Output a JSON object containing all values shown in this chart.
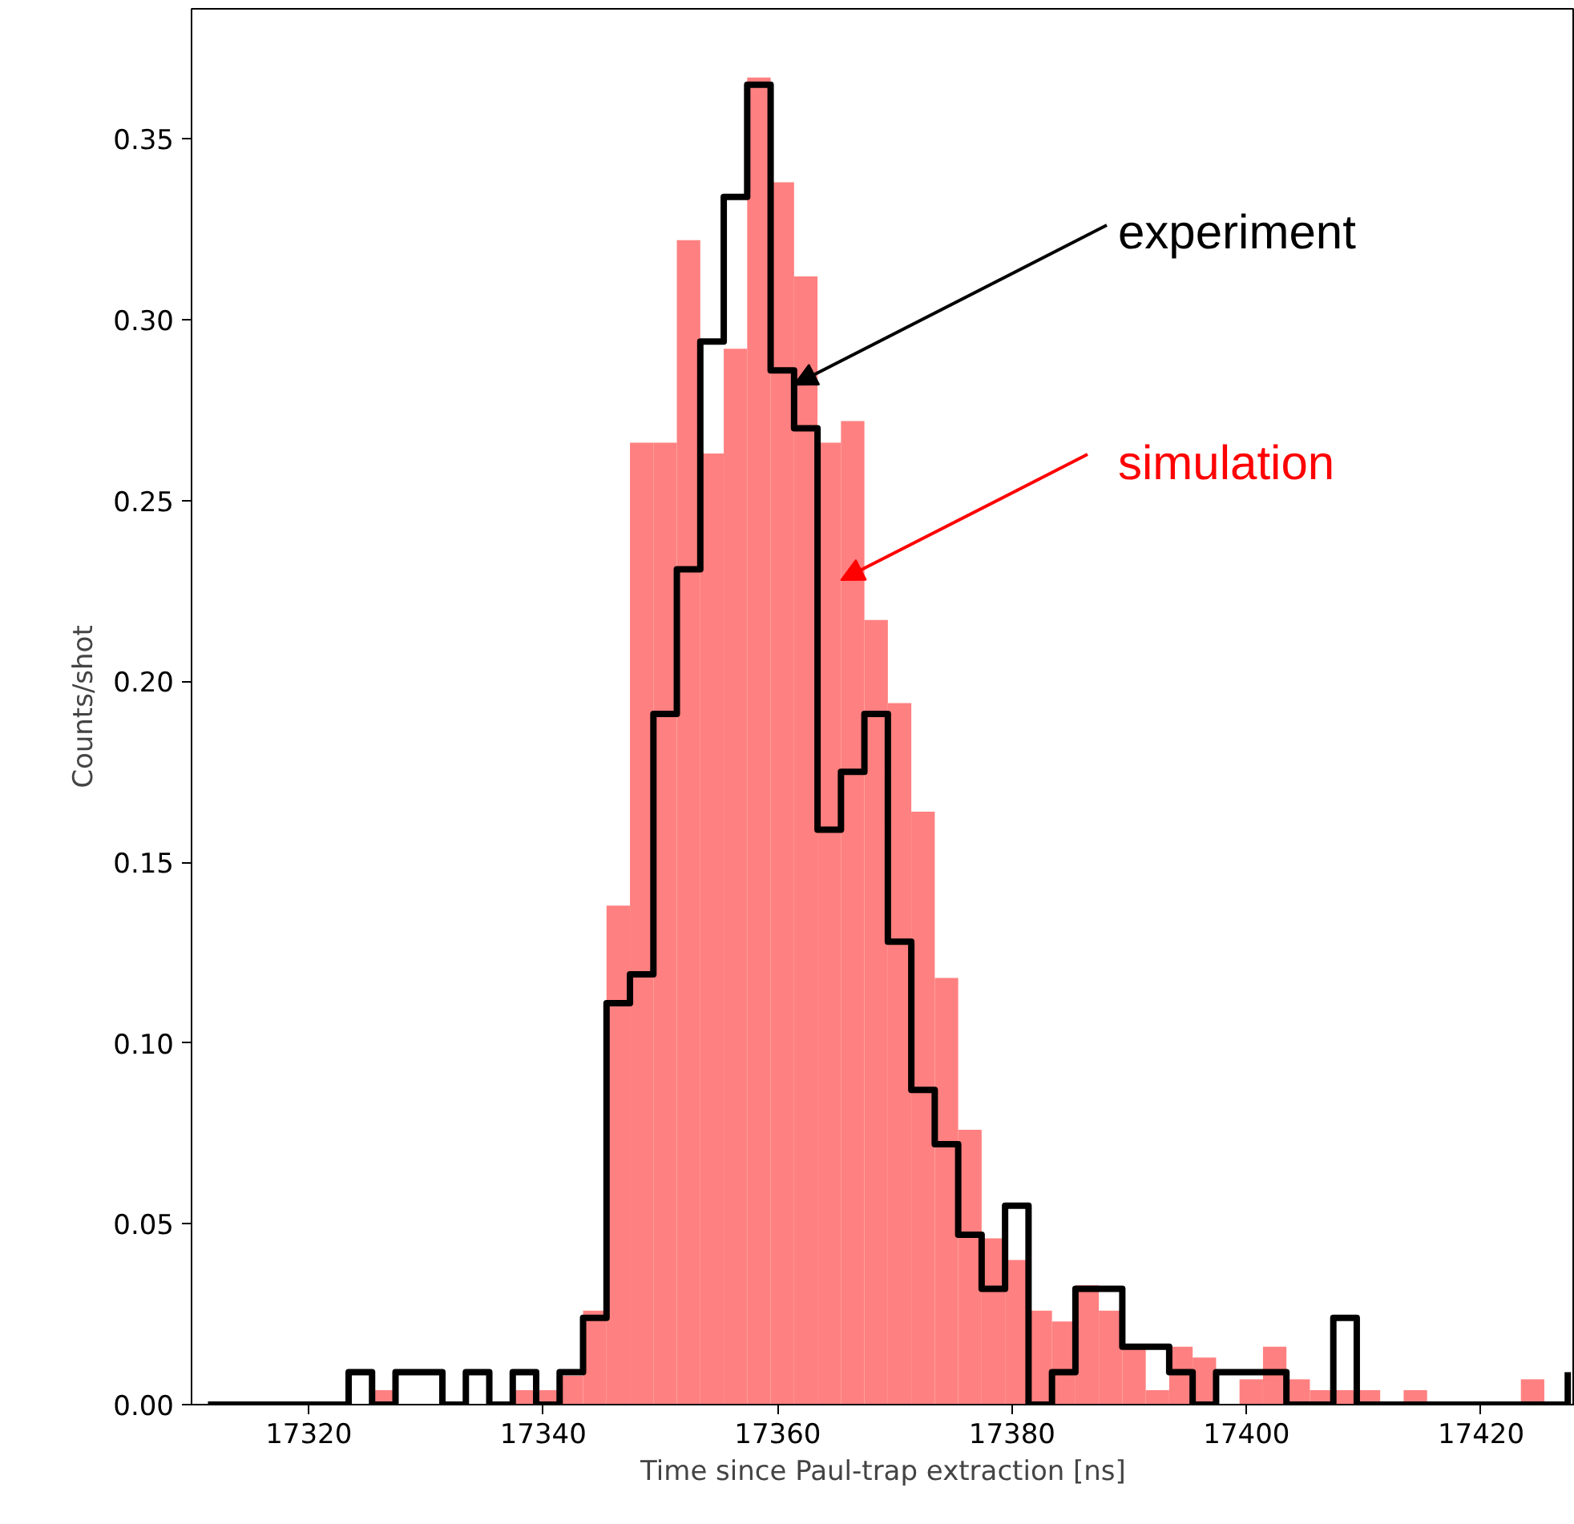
{
  "chart_data": {
    "type": "histogram",
    "xlabel": "Time since Paul-trap extraction [ns]",
    "ylabel": "Counts/shot",
    "bins": [
      17311.4,
      17313.4,
      17315.4,
      17317.4,
      17319.4,
      17321.4,
      17323.4,
      17325.4,
      17327.4,
      17329.4,
      17331.4,
      17333.4,
      17335.4,
      17337.4,
      17339.4,
      17341.4,
      17343.4,
      17345.4,
      17347.4,
      17349.4,
      17351.4,
      17353.4,
      17355.4,
      17357.4,
      17359.4,
      17361.4,
      17363.4,
      17365.4,
      17367.4,
      17369.4,
      17371.4,
      17373.4,
      17375.4,
      17377.4,
      17379.4,
      17381.4,
      17383.4,
      17385.4,
      17387.4,
      17389.4,
      17391.4,
      17393.4,
      17395.4,
      17397.4,
      17399.4,
      17401.4,
      17403.4,
      17405.4,
      17407.4,
      17409.4,
      17411.4,
      17413.4,
      17415.4,
      17417.4,
      17419.4,
      17421.4,
      17423.4,
      17425.4,
      17427.4
    ],
    "series": [
      {
        "color": "#ff8080",
        "values": [
          0,
          0,
          0,
          0,
          0,
          0,
          0,
          0.004,
          0,
          0,
          0,
          0,
          0,
          0.004,
          0.004,
          0.008,
          0.026,
          0.138,
          0.266,
          0.266,
          0.322,
          0.263,
          0.292,
          0.367,
          0.338,
          0.312,
          0.266,
          0.272,
          0.217,
          0.194,
          0.164,
          0.118,
          0.076,
          0.046,
          0.04,
          0.026,
          0.023,
          0.033,
          0.026,
          0.016,
          0.004,
          0.016,
          0.013,
          0,
          0.007,
          0.016,
          0.007,
          0.004,
          0.004,
          0.004,
          0,
          0.004,
          0,
          0,
          0,
          0,
          0.007,
          0
        ]
      },
      {
        "type": "step",
        "color": "#000000",
        "x": [
          17311.4,
          17313.4,
          17315.4,
          17317.4,
          17319.4,
          17321.4,
          17323.4,
          17325.4,
          17327.4,
          17329.4,
          17331.4,
          17333.4,
          17335.4,
          17337.4,
          17339.4,
          17341.4,
          17343.4,
          17345.4,
          17347.4,
          17349.4,
          17351.4,
          17353.4,
          17355.4,
          17357.4,
          17359.4,
          17361.4,
          17363.4,
          17365.4,
          17367.4,
          17369.4,
          17371.4,
          17373.4,
          17375.4,
          17377.4,
          17379.4,
          17381.4,
          17383.4,
          17385.4,
          17387.4,
          17389.4,
          17391.4,
          17393.4,
          17395.4,
          17397.4,
          17399.4,
          17401.4,
          17403.4,
          17405.4,
          17407.4,
          17409.4,
          17411.4,
          17413.4,
          17415.4,
          17417.4,
          17419.4,
          17421.4,
          17423.4,
          17425.4,
          17427.4
        ],
        "values": [
          0,
          0,
          0,
          0,
          0,
          0,
          0.009,
          0,
          0.009,
          0.009,
          0,
          0.009,
          0,
          0.009,
          0,
          0.009,
          0.024,
          0.111,
          0.119,
          0.191,
          0.231,
          0.294,
          0.334,
          0.365,
          0.286,
          0.27,
          0.159,
          0.175,
          0.191,
          0.128,
          0.087,
          0.072,
          0.047,
          0.032,
          0.055,
          0,
          0.009,
          0.032,
          0.032,
          0.016,
          0.016,
          0.009,
          0,
          0.009,
          0.009,
          0.009,
          0,
          0,
          0.024,
          0,
          0,
          0,
          0,
          0,
          0,
          0,
          0,
          0,
          0.009
        ]
      }
    ],
    "annotations": [
      {
        "text": "simulation",
        "x": 17365.4,
        "y": 0.228
      },
      {
        "text": "experiment",
        "x": 17361.4,
        "y": 0.282
      }
    ],
    "xlim": [
      17310,
      17428
    ],
    "ylim": [
      0,
      0.386
    ],
    "xticks": [
      17320,
      17340,
      17360,
      17380,
      17400,
      17420
    ],
    "yticks": [
      {
        "value": 0,
        "label": "0.00"
      },
      {
        "value": 0.05,
        "label": "0.05"
      },
      {
        "value": 0.1,
        "label": "0.10"
      },
      {
        "value": 0.15,
        "label": "0.15"
      },
      {
        "value": 0.2,
        "label": "0.20"
      },
      {
        "value": 0.25,
        "label": "0.25"
      },
      {
        "value": 0.3,
        "label": "0.30"
      },
      {
        "value": 0.35,
        "label": "0.35"
      }
    ],
    "grid": false
  }
}
